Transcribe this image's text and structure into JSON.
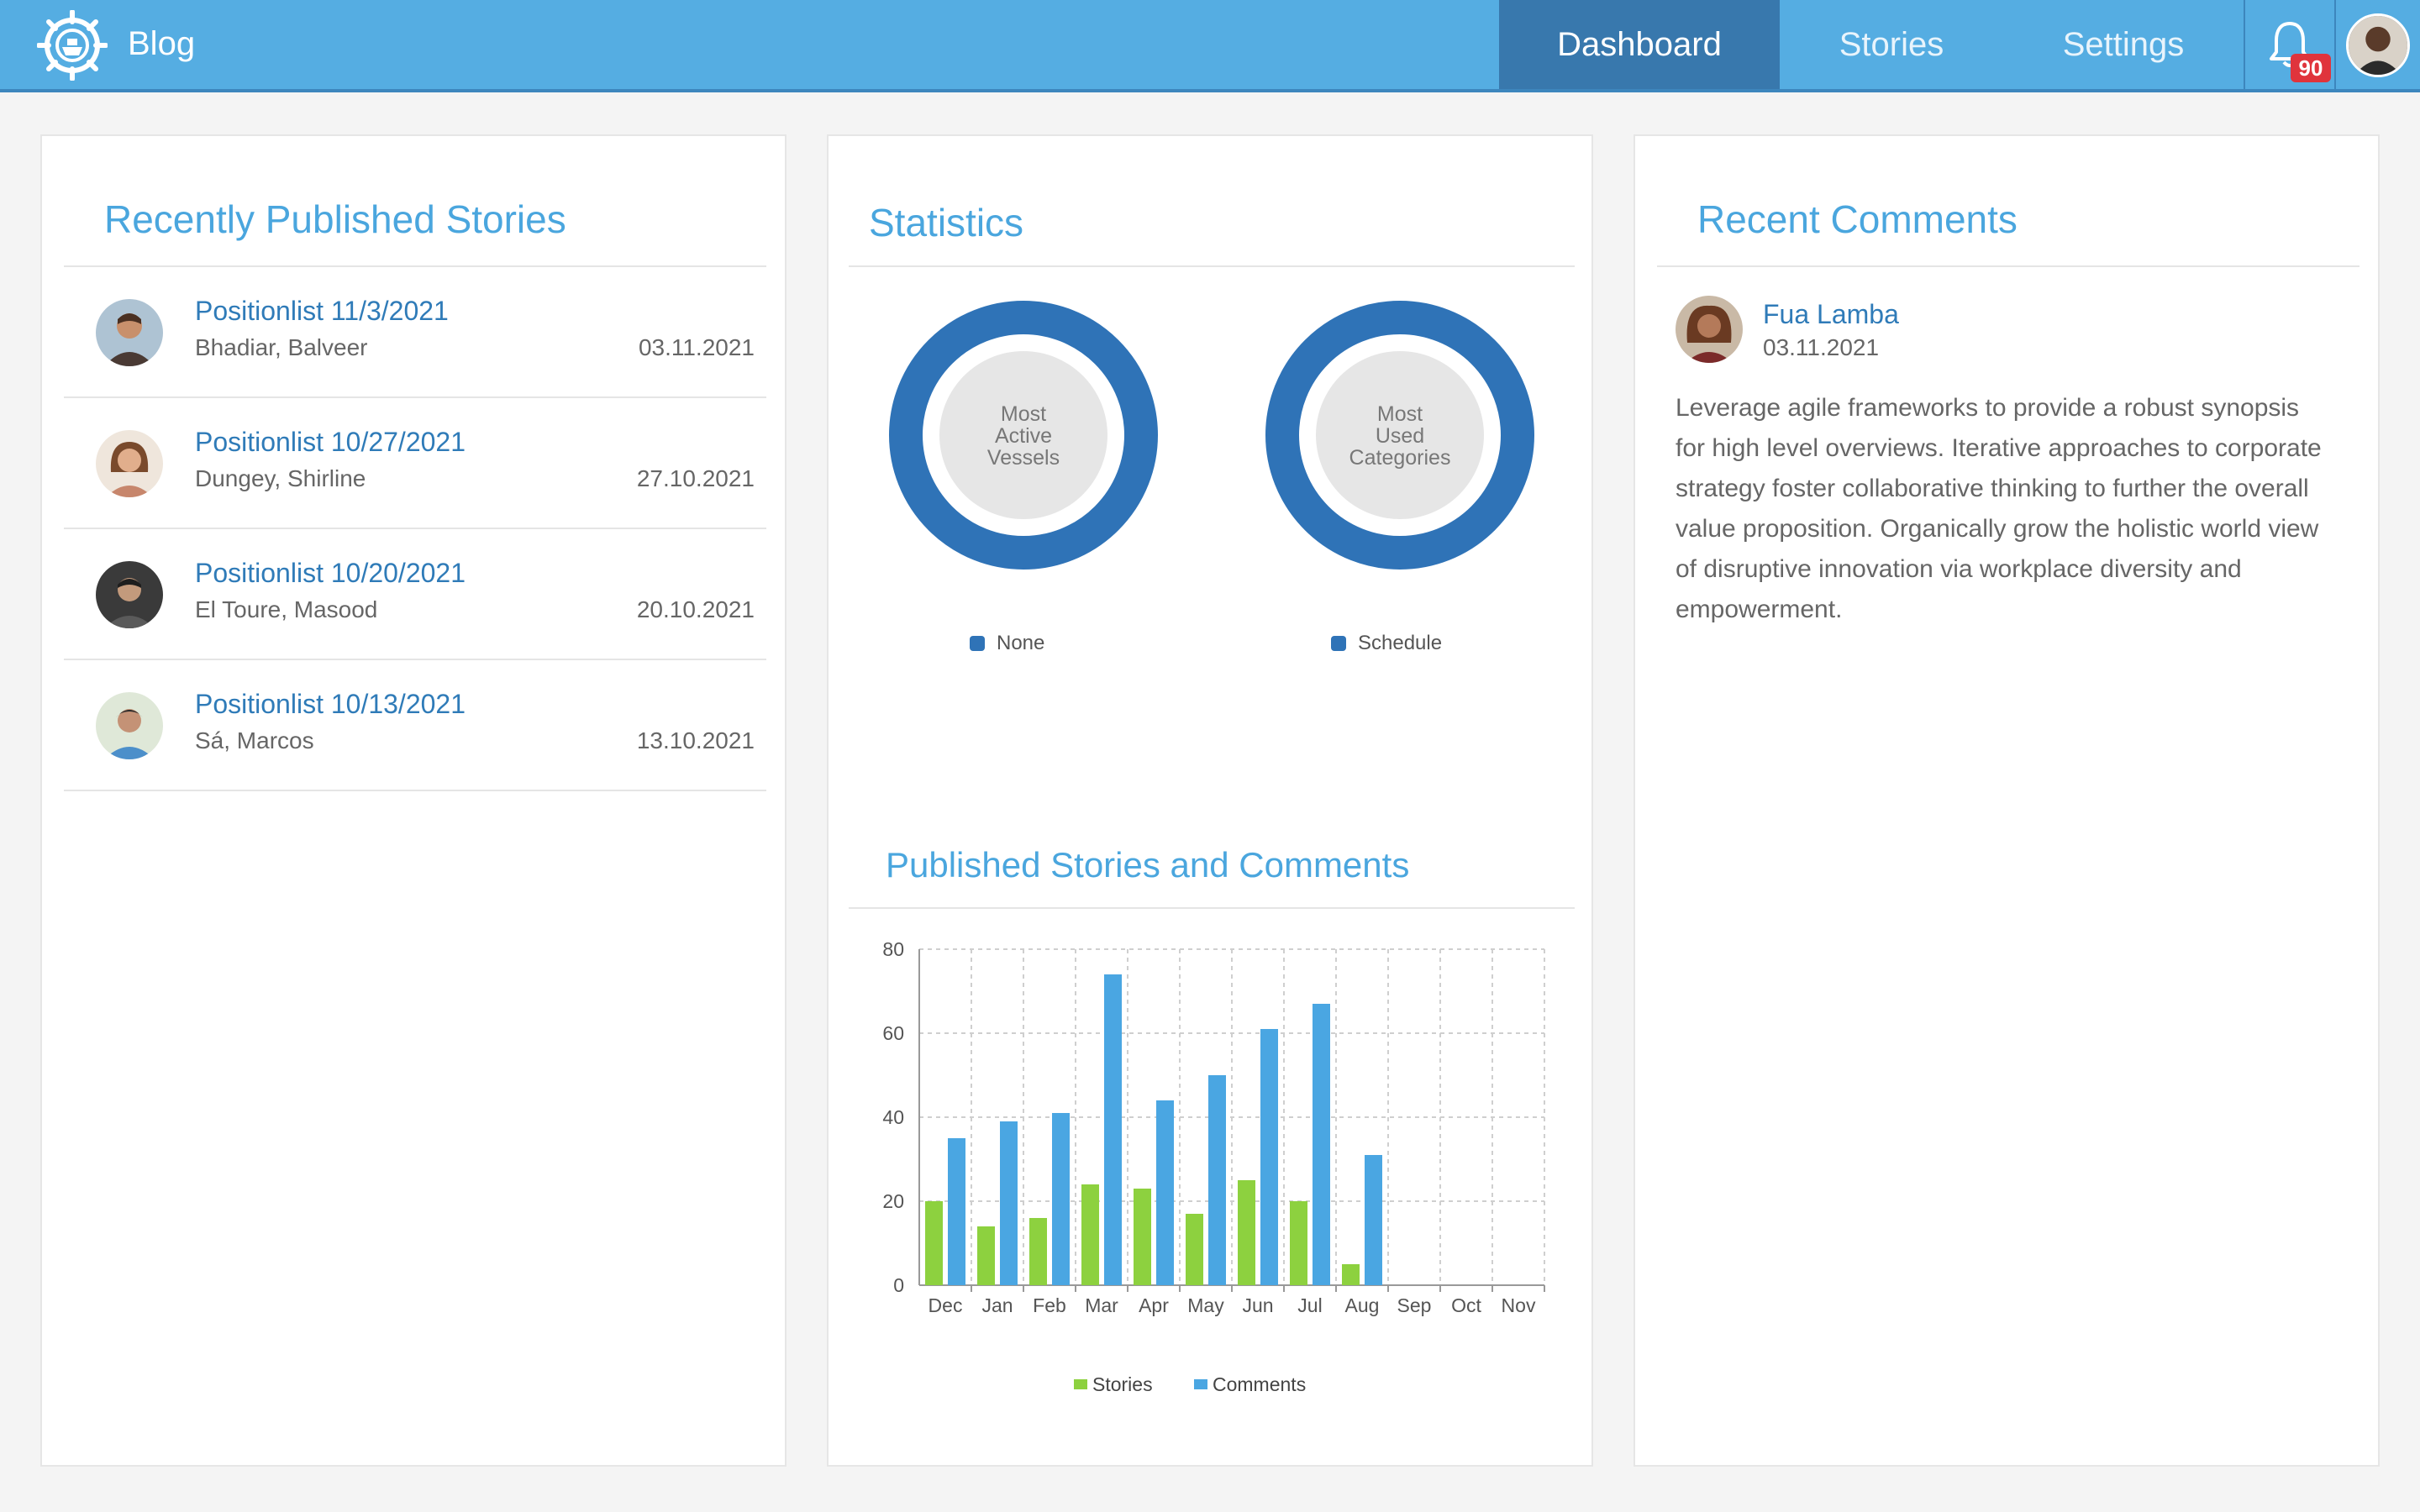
{
  "header": {
    "brand": "Blog",
    "nav": [
      {
        "label": "Dashboard",
        "active": true
      },
      {
        "label": "Stories",
        "active": false
      },
      {
        "label": "Settings",
        "active": false
      }
    ],
    "notification_count": "90",
    "accent_color": "#55ade2",
    "active_color": "#3878ad"
  },
  "recent_stories": {
    "title": "Recently Published Stories",
    "items": [
      {
        "title": "Positionlist 11/3/2021",
        "author": "Bhadiar, Balveer",
        "date": "03.11.2021"
      },
      {
        "title": "Positionlist 10/27/2021",
        "author": "Dungey, Shirline",
        "date": "27.10.2021"
      },
      {
        "title": "Positionlist 10/20/2021",
        "author": "El Toure, Masood",
        "date": "20.10.2021"
      },
      {
        "title": "Positionlist 10/13/2021",
        "author": "Sá, Marcos",
        "date": "13.10.2021"
      }
    ]
  },
  "statistics": {
    "title": "Statistics",
    "donuts": [
      {
        "center_lines": [
          "Most",
          "Active",
          "Vessels"
        ],
        "legend": "None"
      },
      {
        "center_lines": [
          "Most",
          "Used",
          "Categories"
        ],
        "legend": "Schedule"
      }
    ],
    "donut_color": "#2f73b7"
  },
  "published_chart": {
    "title": "Published Stories and Comments"
  },
  "chart_data": {
    "type": "bar",
    "categories": [
      "Dec",
      "Jan",
      "Feb",
      "Mar",
      "Apr",
      "May",
      "Jun",
      "Jul",
      "Aug",
      "Sep",
      "Oct",
      "Nov"
    ],
    "series": [
      {
        "name": "Stories",
        "color": "#8dd13f",
        "values": [
          20,
          14,
          16,
          24,
          23,
          17,
          25,
          20,
          5,
          0,
          0,
          0
        ]
      },
      {
        "name": "Comments",
        "color": "#4aa6e2",
        "values": [
          35,
          39,
          41,
          74,
          44,
          50,
          61,
          67,
          31,
          0,
          0,
          0
        ]
      }
    ],
    "yticks": [
      0,
      20,
      40,
      60,
      80
    ],
    "ylim": [
      0,
      80
    ],
    "grid": true,
    "legend_position": "bottom-center"
  },
  "recent_comments": {
    "title": "Recent Comments",
    "items": [
      {
        "author": "Fua Lamba",
        "date": "03.11.2021",
        "text": "Leverage agile frameworks to provide a robust synopsis for high level overviews. Iterative approaches to corporate strategy foster collaborative thinking to further the overall value proposition. Organically grow the holistic world view of disruptive innovation via workplace diversity and empowerment."
      }
    ]
  }
}
